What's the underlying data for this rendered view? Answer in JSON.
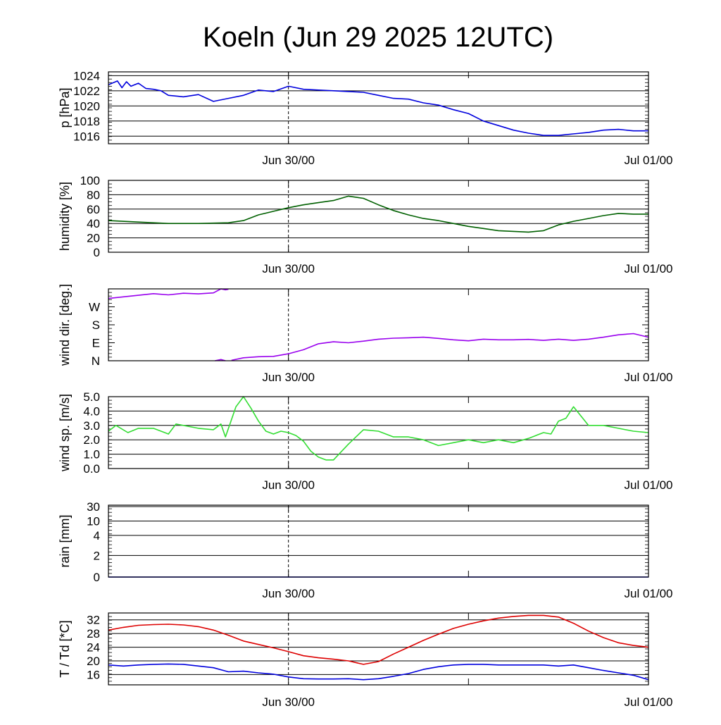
{
  "title": "Koeln (Jun 29 2025 12UTC)",
  "x_tick_labels": [
    "Jun 30/00",
    "Jul 01/00"
  ],
  "chart_data": [
    {
      "type": "line",
      "ylabel": "p [hPa]",
      "ylim": [
        1015,
        1024.5
      ],
      "yticks": [
        1016,
        1018,
        1020,
        1022,
        1024
      ],
      "ytick_labels": [
        "1016",
        "1018",
        "1020",
        "1022",
        "1024"
      ],
      "grid": true,
      "series": [
        {
          "color": "#0000dd",
          "x": [
            0,
            0.6,
            0.9,
            1.2,
            1.5,
            2.0,
            2.5,
            3.0,
            3.5,
            4.0,
            5.0,
            6.0,
            7.0,
            8.0,
            9.0,
            10.0,
            11.0,
            12.0,
            13.0,
            14.0,
            15.0,
            16.0,
            17.0,
            18.0,
            19.0,
            20.0,
            21.0,
            22.0,
            23.0,
            24.0,
            25.0,
            26.0,
            27.0,
            28.0,
            29.0,
            30.0,
            31.0,
            32.0,
            33.0,
            34.0,
            35.0,
            36.0
          ],
          "y": [
            1022.8,
            1023.3,
            1022.4,
            1023.2,
            1022.6,
            1023.0,
            1022.3,
            1022.2,
            1022.0,
            1021.4,
            1021.2,
            1021.5,
            1020.6,
            1021.0,
            1021.4,
            1022.1,
            1021.9,
            1022.6,
            1022.2,
            1022.1,
            1022.0,
            1021.9,
            1021.8,
            1021.4,
            1021.0,
            1020.9,
            1020.4,
            1020.1,
            1019.5,
            1019.0,
            1018.0,
            1017.4,
            1016.8,
            1016.4,
            1016.1,
            1016.1,
            1016.3,
            1016.5,
            1016.8,
            1016.9,
            1016.7,
            1016.7
          ]
        }
      ]
    },
    {
      "type": "line",
      "ylabel": "humidity [%]",
      "ylim": [
        0,
        100
      ],
      "yticks": [
        0,
        20,
        40,
        60,
        80,
        100
      ],
      "ytick_labels": [
        "0",
        "20",
        "40",
        "60",
        "80",
        "100"
      ],
      "grid": true,
      "series": [
        {
          "color": "#006000",
          "x": [
            0,
            2,
            4,
            6,
            8,
            9,
            10,
            11,
            12,
            13,
            14,
            15,
            16,
            17,
            18,
            19,
            20,
            21,
            22,
            23,
            24,
            25,
            26,
            27,
            28,
            29,
            30,
            31,
            32,
            33,
            34,
            35,
            36
          ],
          "y": [
            44,
            42,
            40,
            40,
            41,
            44,
            52,
            57,
            62,
            66,
            69,
            72,
            78,
            75,
            66,
            58,
            52,
            47,
            44,
            40,
            36,
            33,
            30,
            29,
            28,
            30,
            38,
            43,
            47,
            51,
            54,
            53,
            53
          ]
        }
      ]
    },
    {
      "type": "line",
      "ylabel": "wind dir. [deg.]",
      "ylim": [
        0,
        360
      ],
      "yticks": [
        0,
        90,
        180,
        270
      ],
      "ytick_labels": [
        "N",
        "E",
        "S",
        "W"
      ],
      "grid": false,
      "series": [
        {
          "color": "#9900ee",
          "segments": [
            {
              "x": [
                0,
                1,
                2,
                3,
                4,
                5,
                6,
                7,
                7.5
              ],
              "y": [
                312,
                320,
                328,
                336,
                330,
                338,
                335,
                340,
                360
              ]
            },
            {
              "x": [
                7.5,
                7.8,
                8.0
              ],
              "y": [
                360,
                355,
                358
              ]
            },
            {
              "x": [
                7.1,
                7.5,
                7.8
              ],
              "y": [
                0,
                6,
                0
              ]
            },
            {
              "x": [
                8.2,
                9,
                10,
                11,
                12,
                13,
                14,
                15,
                16,
                17,
                18,
                19,
                20,
                21,
                22,
                23,
                24,
                25,
                26,
                27,
                28,
                29,
                30,
                31,
                32,
                33,
                34,
                35,
                36
              ],
              "y": [
                2,
                15,
                20,
                22,
                35,
                55,
                85,
                95,
                90,
                98,
                108,
                113,
                115,
                118,
                112,
                105,
                100,
                108,
                105,
                105,
                107,
                102,
                108,
                102,
                108,
                118,
                130,
                136,
                118
              ]
            }
          ]
        }
      ]
    },
    {
      "type": "line",
      "ylabel": "wind sp. [m/s]",
      "ylim": [
        0,
        5
      ],
      "yticks": [
        0,
        1,
        2,
        3,
        4,
        5
      ],
      "ytick_labels": [
        "0.0",
        "1.0",
        "2.0",
        "3.0",
        "4.0",
        "5.0"
      ],
      "grid": true,
      "series": [
        {
          "color": "#33dd33",
          "x": [
            0,
            0.5,
            1.3,
            2,
            3,
            4,
            4.5,
            6,
            7,
            7.5,
            7.8,
            8.1,
            8.5,
            9,
            9.5,
            10,
            10.5,
            11,
            11.5,
            12,
            12.5,
            13,
            13.5,
            14,
            14.5,
            15,
            16,
            17,
            18,
            19,
            20,
            21,
            22,
            23,
            24,
            25,
            26,
            27,
            28,
            28.5,
            29,
            29.5,
            30,
            30.5,
            31,
            32,
            33,
            34,
            35,
            36
          ],
          "y": [
            2.6,
            3.0,
            2.5,
            2.8,
            2.8,
            2.4,
            3.1,
            2.8,
            2.7,
            3.1,
            2.2,
            3.1,
            4.3,
            5.0,
            4.2,
            3.3,
            2.6,
            2.4,
            2.6,
            2.5,
            2.3,
            1.9,
            1.2,
            0.8,
            0.6,
            0.6,
            1.7,
            2.7,
            2.6,
            2.2,
            2.2,
            2.0,
            1.6,
            1.8,
            2.0,
            1.8,
            2.0,
            1.8,
            2.1,
            2.3,
            2.5,
            2.4,
            3.3,
            3.5,
            4.3,
            3.0,
            3.0,
            2.8,
            2.6,
            2.5
          ]
        }
      ]
    },
    {
      "type": "line",
      "ylabel": "rain [mm]",
      "ylim": [
        0,
        30
      ],
      "yticks": [
        0,
        2,
        4,
        10,
        30
      ],
      "ytick_labels": [
        "0",
        "2",
        "4",
        "10",
        "30"
      ],
      "grid": true,
      "series": [
        {
          "color": "#0000dd",
          "x": [
            0,
            36
          ],
          "y": [
            0,
            0
          ]
        }
      ]
    },
    {
      "type": "line",
      "ylabel": "T / Td [*C]",
      "ylim": [
        13,
        34
      ],
      "yticks": [
        16,
        20,
        24,
        28,
        32
      ],
      "ytick_labels": [
        "16",
        "20",
        "24",
        "28",
        "32"
      ],
      "grid": true,
      "series": [
        {
          "color": "#dd0000",
          "x": [
            0,
            1,
            2,
            3,
            4,
            5,
            6,
            7,
            8,
            9,
            10,
            11,
            12,
            13,
            14,
            15,
            16,
            17,
            18,
            19,
            20,
            21,
            22,
            23,
            24,
            25,
            26,
            27,
            28,
            29,
            30,
            31,
            32,
            33,
            34,
            35,
            36
          ],
          "y": [
            29.0,
            29.8,
            30.4,
            30.6,
            30.7,
            30.5,
            30.0,
            29.0,
            27.5,
            25.8,
            24.8,
            23.8,
            22.7,
            21.5,
            20.9,
            20.5,
            20.0,
            19.0,
            19.8,
            22.0,
            24.0,
            26.0,
            27.8,
            29.5,
            30.7,
            31.7,
            32.5,
            33.0,
            33.3,
            33.3,
            32.8,
            31.0,
            28.7,
            26.8,
            25.3,
            24.5,
            24.0
          ]
        },
        {
          "color": "#0000dd",
          "x": [
            0,
            1,
            2,
            3,
            4,
            5,
            6,
            7,
            8,
            9,
            10,
            11,
            12,
            13,
            14,
            15,
            16,
            17,
            18,
            19,
            20,
            21,
            22,
            23,
            24,
            25,
            26,
            27,
            28,
            29,
            30,
            31,
            32,
            33,
            34,
            35,
            36
          ],
          "y": [
            18.8,
            18.5,
            18.8,
            19.0,
            19.1,
            19.0,
            18.5,
            18.0,
            16.8,
            17.0,
            16.5,
            16.1,
            15.3,
            14.8,
            14.7,
            14.7,
            14.8,
            14.5,
            14.8,
            15.5,
            16.3,
            17.5,
            18.3,
            18.8,
            19.0,
            19.0,
            18.8,
            18.8,
            18.8,
            18.8,
            18.5,
            18.8,
            18.0,
            17.2,
            16.5,
            15.8,
            14.5
          ]
        }
      ]
    }
  ]
}
